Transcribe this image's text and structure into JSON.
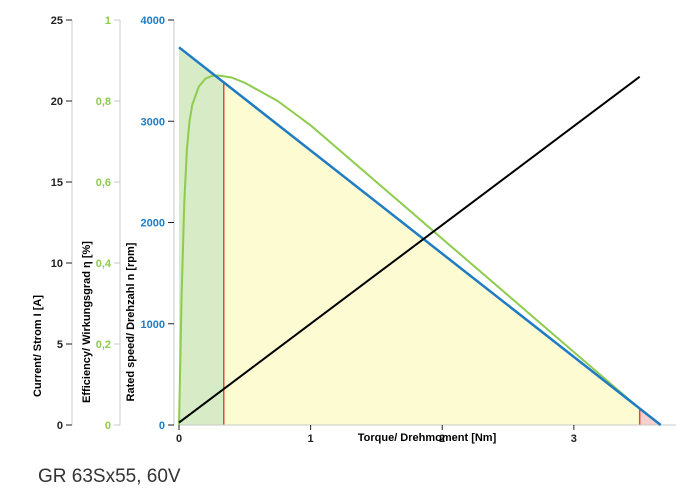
{
  "caption": "GR 63Sx55, 60V",
  "colors": {
    "current": "#000000",
    "efficiency": "#8dcc4c",
    "speed": "#1f7cc4",
    "marker": "#e8463c",
    "fill_green": "#d6ebc6",
    "fill_yellow": "#fcfbd2",
    "fill_red": "#f6d0cc",
    "axis_gray": "#c8c8c8",
    "tick_dark": "#222222"
  },
  "chart_data": {
    "type": "line",
    "title": "",
    "xlabel": "Torque/ Drehmoment [Nm]",
    "xlim": [
      0,
      3.7
    ],
    "xticks": [
      "0",
      "1",
      "2",
      "3"
    ],
    "y_axes": [
      {
        "name": "current",
        "label": "Current/ Strom I [A]",
        "ylim": [
          0,
          25
        ],
        "ticks": [
          "0",
          "5",
          "10",
          "15",
          "20",
          "25"
        ]
      },
      {
        "name": "efficiency",
        "label": "Efficiency/ Wirkungsgrad η [%]",
        "ylim": [
          0,
          1
        ],
        "ticks": [
          "0",
          "0,2",
          "0,4",
          "0,6",
          "0,8",
          "1"
        ]
      },
      {
        "name": "speed",
        "label": "Rated speed/ Drehzahl n [rpm]",
        "ylim": [
          0,
          4000
        ],
        "ticks": [
          "0",
          "1000",
          "2000",
          "3000",
          "4000"
        ]
      }
    ],
    "series": [
      {
        "axis": "current",
        "x": [
          0,
          3.5
        ],
        "values": [
          0.15,
          21.5
        ]
      },
      {
        "axis": "speed",
        "x": [
          0,
          3.66
        ],
        "values": [
          3730,
          0
        ]
      },
      {
        "axis": "efficiency",
        "x": [
          0,
          0.02,
          0.04,
          0.06,
          0.08,
          0.1,
          0.15,
          0.2,
          0.25,
          0.3,
          0.4,
          0.5,
          0.75,
          1.0,
          1.25,
          1.5,
          1.75,
          2.0,
          2.25,
          2.5,
          2.75,
          3.0,
          3.25,
          3.5,
          3.66
        ],
        "values": [
          0,
          0.32,
          0.55,
          0.68,
          0.75,
          0.79,
          0.835,
          0.855,
          0.862,
          0.863,
          0.858,
          0.845,
          0.8,
          0.74,
          0.67,
          0.6,
          0.53,
          0.46,
          0.39,
          0.32,
          0.25,
          0.18,
          0.11,
          0.04,
          0
        ]
      }
    ],
    "markers": {
      "rated_torque": 0.34,
      "max_torque": 3.5
    },
    "grid": false
  }
}
